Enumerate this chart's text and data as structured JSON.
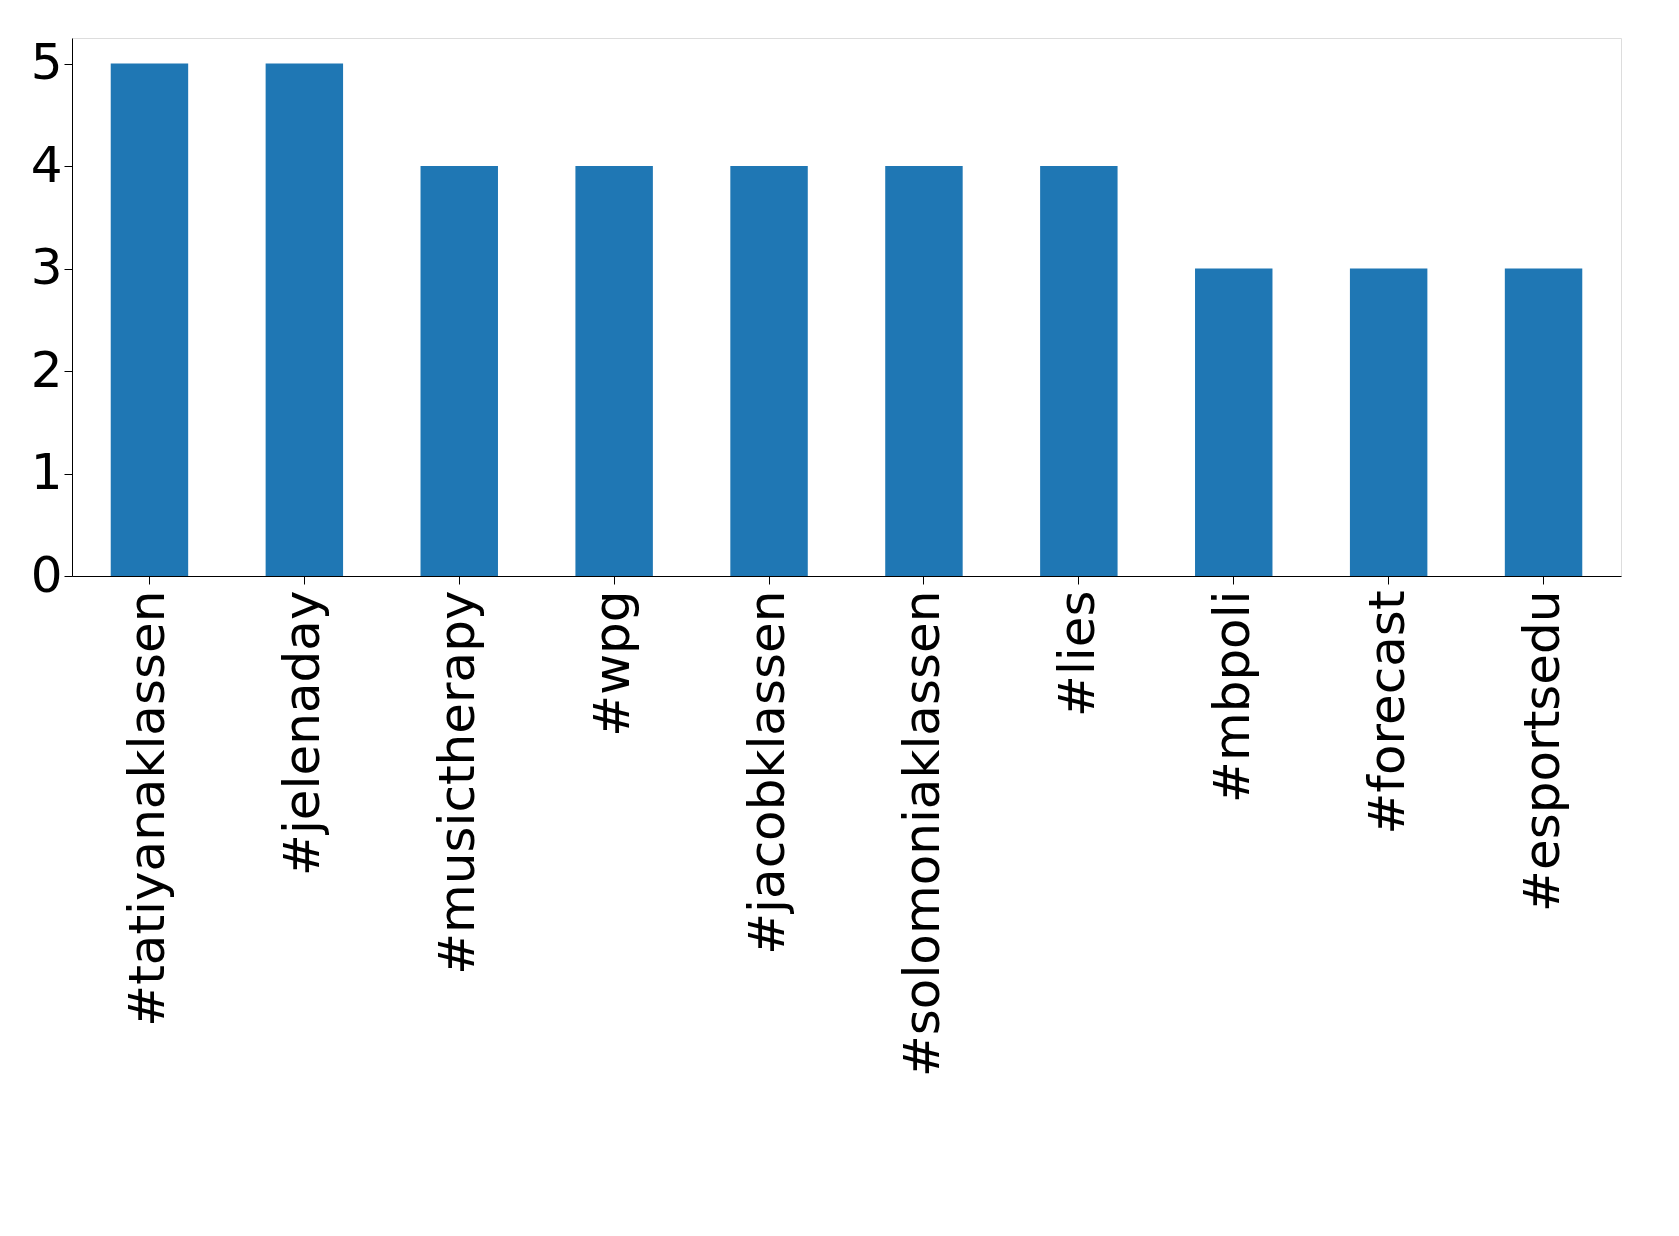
{
  "chart_data": {
    "type": "bar",
    "categories": [
      "#tatiyanaklassen",
      "#jelenaday",
      "#musictherapy",
      "#wpg",
      "#jacobklassen",
      "#solomoniaklassen",
      "#lies",
      "#mbpoli",
      "#forecast",
      "#esportsedu"
    ],
    "values": [
      5,
      5,
      4,
      4,
      4,
      4,
      4,
      3,
      3,
      3
    ],
    "color": "#1f77b4",
    "ylim": [
      0,
      5.25
    ],
    "yticks": [
      0,
      1,
      2,
      3,
      4,
      5
    ],
    "grid": false
  }
}
